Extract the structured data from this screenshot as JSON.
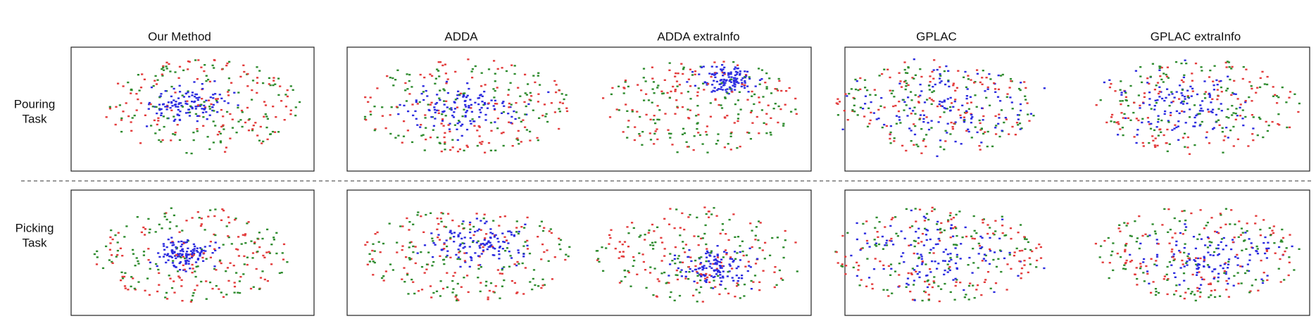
{
  "columns": [
    "Our Method",
    "ADDA",
    "ADDA extraInfo",
    "GPLAC",
    "GPLAC extraInfo"
  ],
  "rows": [
    [
      "Pouring",
      "Task"
    ],
    [
      "Picking",
      "Task"
    ]
  ]
}
